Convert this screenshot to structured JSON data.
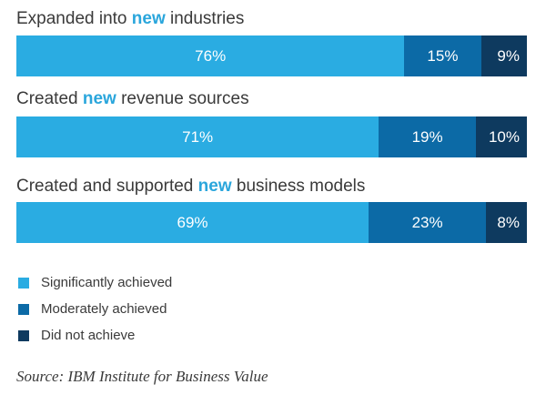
{
  "colors": {
    "significantly": "#2aace2",
    "moderately": "#0c6aa6",
    "not_achieved": "#0e3a5f",
    "highlight": "#2aa6dc"
  },
  "rows": [
    {
      "title_pre": "Expanded into ",
      "title_hl": "new",
      "title_post": " industries",
      "labels": [
        "76%",
        "15%",
        "9%"
      ]
    },
    {
      "title_pre": "Created ",
      "title_hl": "new",
      "title_post": " revenue sources",
      "labels": [
        "71%",
        "19%",
        "10%"
      ]
    },
    {
      "title_pre": "Created and supported ",
      "title_hl": "new",
      "title_post": " business models",
      "labels": [
        "69%",
        "23%",
        "8%"
      ]
    }
  ],
  "legend": [
    {
      "label": "Significantly achieved"
    },
    {
      "label": "Moderately achieved"
    },
    {
      "label": "Did not achieve"
    }
  ],
  "source": "Source: IBM Institute for Business Value",
  "chart_data": {
    "type": "bar",
    "orientation": "horizontal",
    "stacked": true,
    "categories": [
      "Expanded into new industries",
      "Created new revenue sources",
      "Created and supported new business models"
    ],
    "series": [
      {
        "name": "Significantly achieved",
        "values": [
          76,
          71,
          69
        ]
      },
      {
        "name": "Moderately achieved",
        "values": [
          15,
          19,
          23
        ]
      },
      {
        "name": "Did not achieve",
        "values": [
          9,
          10,
          8
        ]
      }
    ],
    "unit": "%",
    "xlim": [
      0,
      100
    ],
    "grid": false,
    "legend_position": "bottom-left"
  }
}
